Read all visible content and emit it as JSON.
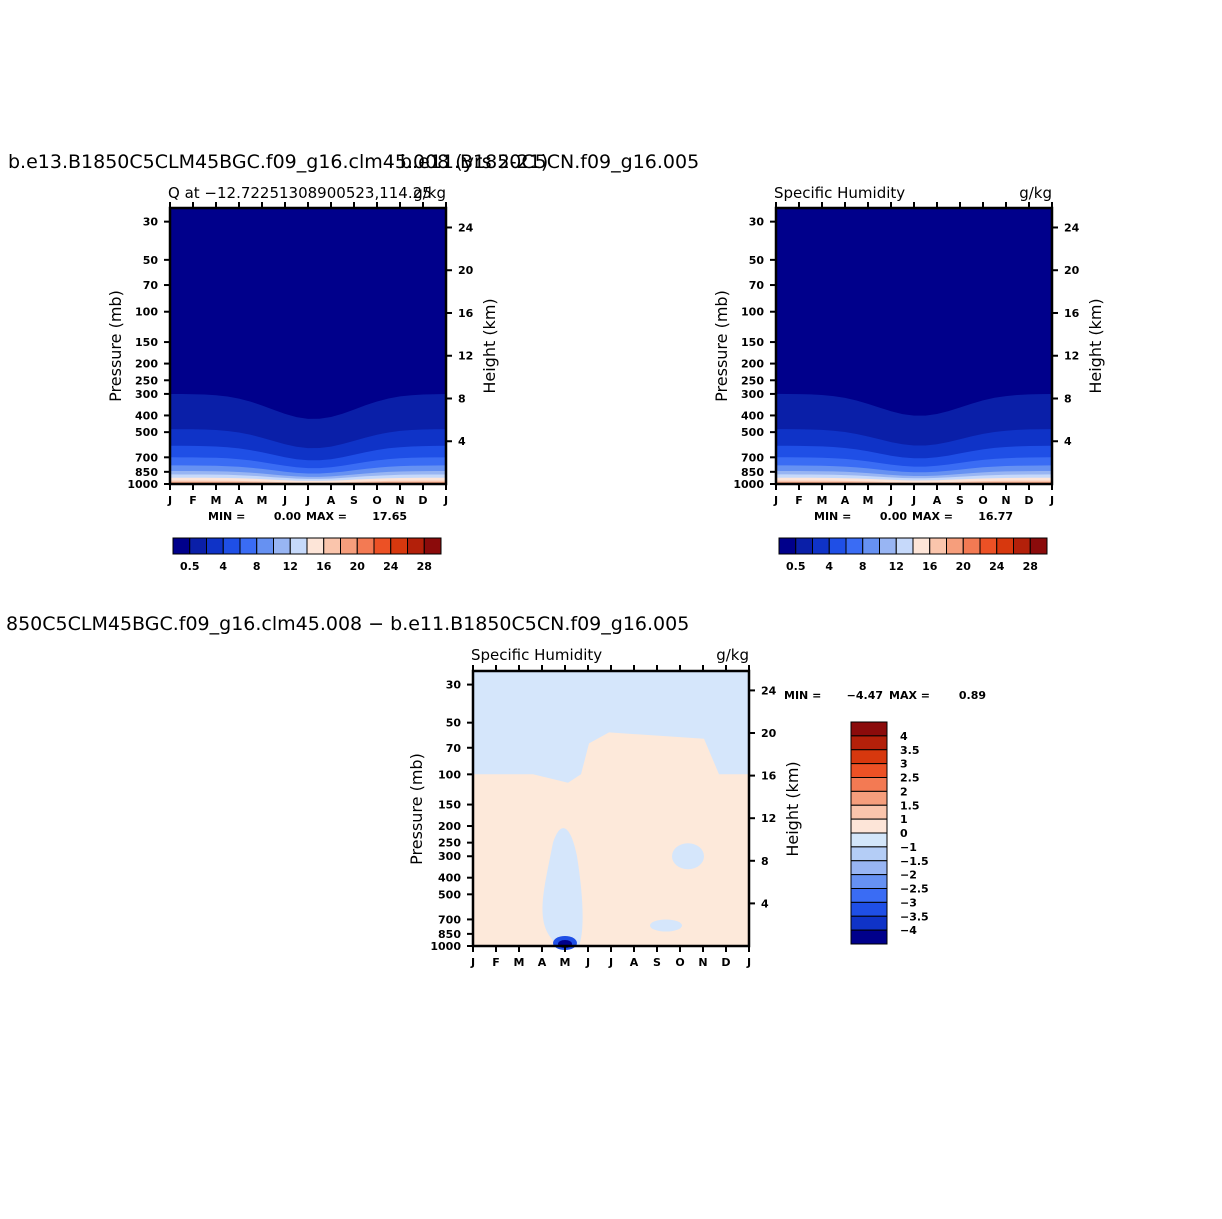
{
  "header": {
    "top_title": "b.e13.B1850C5CLM45BGC.f09_g16.clm45.008 (yrs 2-21)",
    "top_title_overlap": "b.e11.B1850C5CN.f09_g16.005",
    "bottom_title": "850C5CLM45BGC.f09_g16.clm45.008 − b.e11.B1850C5CN.f09_g16.005"
  },
  "panels": [
    {
      "left_title": "Q at −12.72251308900523,114.25",
      "right_title": "g/kg",
      "min_label": "MIN =",
      "min_value": "0.00",
      "max_label": "MAX =",
      "max_value": "17.65",
      "ylabel": "Pressure (mb)",
      "y2label": "Height (km)"
    },
    {
      "left_title": "Specific Humidity",
      "right_title": "g/kg",
      "min_label": "MIN =",
      "min_value": "0.00",
      "max_label": "MAX =",
      "max_value": "16.77",
      "ylabel": "Pressure (mb)",
      "y2label": "Height (km)"
    },
    {
      "left_title": "Specific Humidity",
      "right_title": "g/kg",
      "min_label": "MIN =",
      "min_value": "−4.47",
      "max_label": "MAX =",
      "max_value": "0.89",
      "ylabel": "Pressure (mb)",
      "y2label": "Height (km)"
    }
  ],
  "chart_data": [
    {
      "type": "heatmap",
      "title": "Q at −12.72251308900523,114.25",
      "units": "g/kg",
      "x_ticks": [
        "J",
        "F",
        "M",
        "A",
        "M",
        "J",
        "J",
        "A",
        "S",
        "O",
        "N",
        "D",
        "J"
      ],
      "y_ticks": [
        "30",
        "50",
        "70",
        "100",
        "150",
        "200",
        "250",
        "300",
        "400",
        "500",
        "700",
        "850",
        "1000"
      ],
      "y2_ticks": [
        "24",
        "20",
        "16",
        "12",
        "8",
        "4"
      ],
      "ylabel": "Pressure (mb)",
      "y2label": "Height (km)",
      "y_scale": "log",
      "ylim": [
        1000,
        25
      ],
      "min": 0.0,
      "max": 17.65,
      "colorbar_labels": [
        "0.5",
        "4",
        "8",
        "12",
        "16",
        "20",
        "24",
        "28"
      ],
      "colorbar_orientation": "horizontal"
    },
    {
      "type": "heatmap",
      "title": "Specific Humidity",
      "units": "g/kg",
      "x_ticks": [
        "J",
        "F",
        "M",
        "A",
        "M",
        "J",
        "J",
        "A",
        "S",
        "O",
        "N",
        "D",
        "J"
      ],
      "y_ticks": [
        "30",
        "50",
        "70",
        "100",
        "150",
        "200",
        "250",
        "300",
        "400",
        "500",
        "700",
        "850",
        "1000"
      ],
      "y2_ticks": [
        "24",
        "20",
        "16",
        "12",
        "8",
        "4"
      ],
      "ylabel": "Pressure (mb)",
      "y2label": "Height (km)",
      "y_scale": "log",
      "ylim": [
        1000,
        25
      ],
      "min": 0.0,
      "max": 16.77,
      "colorbar_labels": [
        "0.5",
        "4",
        "8",
        "12",
        "16",
        "20",
        "24",
        "28"
      ],
      "colorbar_orientation": "horizontal"
    },
    {
      "type": "heatmap",
      "title": "Specific Humidity",
      "units": "g/kg",
      "x_ticks": [
        "J",
        "F",
        "M",
        "A",
        "M",
        "J",
        "J",
        "A",
        "S",
        "O",
        "N",
        "D",
        "J"
      ],
      "y_ticks": [
        "30",
        "50",
        "70",
        "100",
        "150",
        "200",
        "250",
        "300",
        "400",
        "500",
        "700",
        "850",
        "1000"
      ],
      "y2_ticks": [
        "24",
        "20",
        "16",
        "12",
        "8",
        "4"
      ],
      "ylabel": "Pressure (mb)",
      "y2label": "Height (km)",
      "y_scale": "log",
      "ylim": [
        1000,
        25
      ],
      "min": -4.47,
      "max": 0.89,
      "colorbar_labels": [
        "4",
        "3.5",
        "3",
        "2.5",
        "2",
        "1.5",
        "1",
        "0",
        "−1",
        "−1.5",
        "−2",
        "−2.5",
        "−3",
        "−3.5",
        "−4"
      ],
      "colorbar_orientation": "vertical"
    }
  ],
  "colors": {
    "seq": [
      "#00008b",
      "#0a1fa8",
      "#0f33c7",
      "#1f4fe6",
      "#3a6cf4",
      "#6691f2",
      "#98b5f3",
      "#c6d9fa",
      "#fde5d8",
      "#fac5ac",
      "#f69e7c",
      "#f37a53",
      "#ec5125",
      "#d7380e",
      "#b3200a",
      "#8b0b0b"
    ],
    "div": [
      "#8b0b0b",
      "#b3200a",
      "#d7380e",
      "#ec5125",
      "#f37a53",
      "#f69e7c",
      "#fac5ac",
      "#fde5d8",
      "#d3e6fa",
      "#b4cdf6",
      "#98b5f3",
      "#6691f2",
      "#3a6cf4",
      "#1f4fe6",
      "#0f33c7",
      "#00008b"
    ],
    "bg_pos": "#fde9da",
    "bg_neg": "#d5e6fb"
  }
}
